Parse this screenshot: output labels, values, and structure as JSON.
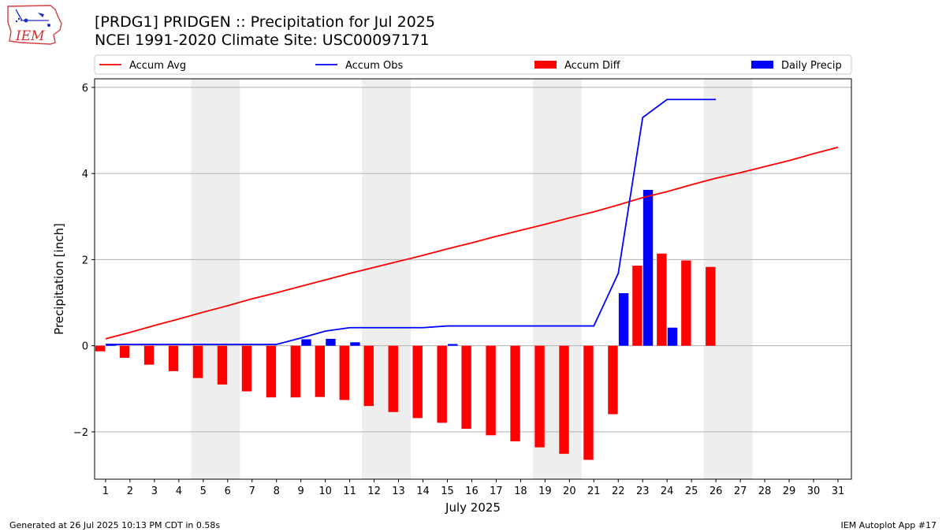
{
  "header": {
    "title_line1": "[PRDG1] PRIDGEN :: Precipitation for Jul 2025",
    "title_line2": "NCEI 1991-2020 Climate Site: USC00097171",
    "logo_text": "IEM"
  },
  "footer": {
    "generated": "Generated at 26 Jul 2025 10:13 PM CDT in 0.58s",
    "app": "IEM Autoplot App #17"
  },
  "colors": {
    "accum_avg": "#ff0000",
    "accum_obs": "#0000ff",
    "accum_diff": "#ff0000",
    "daily_precip": "#0000ff",
    "weekend_shade": "#eeeeee",
    "grid": "#b0b0b0"
  },
  "chart_data": {
    "type": "bar",
    "xlabel": "July 2025",
    "ylabel": "Precipitation [inch]",
    "ylim": [
      -3.1,
      6.2
    ],
    "yticks": [
      -2,
      0,
      2,
      4,
      6
    ],
    "ytick_labels": [
      "−2",
      "0",
      "2",
      "4",
      "6"
    ],
    "xlim": [
      0.55,
      31.55
    ],
    "days": [
      1,
      2,
      3,
      4,
      5,
      6,
      7,
      8,
      9,
      10,
      11,
      12,
      13,
      14,
      15,
      16,
      17,
      18,
      19,
      20,
      21,
      22,
      23,
      24,
      25,
      26,
      27,
      28,
      29,
      30,
      31
    ],
    "grid": "horizontal",
    "legend_placement": "top",
    "weekend_spans": [
      [
        4.5,
        6.5
      ],
      [
        11.5,
        13.5
      ],
      [
        18.5,
        20.5
      ],
      [
        25.5,
        27.5
      ]
    ],
    "series": [
      {
        "name": "Accum Avg",
        "kind": "line",
        "x": [
          1,
          2,
          3,
          4,
          5,
          6,
          7,
          8,
          9,
          10,
          11,
          12,
          13,
          14,
          15,
          16,
          17,
          18,
          19,
          20,
          21,
          22,
          23,
          24,
          25,
          26,
          27,
          28,
          29,
          30,
          31
        ],
        "values": [
          0.16,
          0.31,
          0.47,
          0.62,
          0.78,
          0.93,
          1.09,
          1.23,
          1.38,
          1.53,
          1.68,
          1.82,
          1.96,
          2.1,
          2.25,
          2.39,
          2.54,
          2.68,
          2.82,
          2.97,
          3.11,
          3.27,
          3.44,
          3.58,
          3.74,
          3.89,
          4.02,
          4.16,
          4.3,
          4.46,
          4.61
        ]
      },
      {
        "name": "Accum Obs",
        "kind": "line",
        "x": [
          1,
          2,
          3,
          4,
          5,
          6,
          7,
          8,
          9,
          10,
          11,
          12,
          13,
          14,
          15,
          16,
          17,
          18,
          19,
          20,
          21,
          22,
          23,
          24,
          25,
          26
        ],
        "values": [
          0.03,
          0.03,
          0.03,
          0.03,
          0.03,
          0.03,
          0.03,
          0.03,
          0.18,
          0.34,
          0.42,
          0.42,
          0.42,
          0.42,
          0.46,
          0.46,
          0.46,
          0.46,
          0.46,
          0.46,
          0.46,
          1.68,
          5.3,
          5.72,
          5.72,
          5.72
        ]
      },
      {
        "name": "Accum Diff",
        "kind": "bar",
        "x": [
          1,
          2,
          3,
          4,
          5,
          6,
          7,
          8,
          9,
          10,
          11,
          12,
          13,
          14,
          15,
          16,
          17,
          18,
          19,
          20,
          21,
          22,
          23,
          24,
          25,
          26
        ],
        "values": [
          -0.13,
          -0.28,
          -0.44,
          -0.59,
          -0.75,
          -0.9,
          -1.06,
          -1.2,
          -1.2,
          -1.19,
          -1.26,
          -1.4,
          -1.54,
          -1.68,
          -1.79,
          -1.93,
          -2.08,
          -2.22,
          -2.36,
          -2.51,
          -2.65,
          -1.59,
          1.86,
          2.14,
          1.98,
          1.83
        ]
      },
      {
        "name": "Daily Precip",
        "kind": "bar",
        "x": [
          1,
          2,
          3,
          4,
          5,
          6,
          7,
          8,
          9,
          10,
          11,
          12,
          13,
          14,
          15,
          16,
          17,
          18,
          19,
          20,
          21,
          22,
          23,
          24,
          25,
          26
        ],
        "values": [
          0.03,
          0,
          0,
          0,
          0,
          0,
          0,
          0,
          0.15,
          0.16,
          0.08,
          0,
          0,
          0,
          0.04,
          0,
          0,
          0,
          0,
          0,
          0,
          1.22,
          3.62,
          0.42,
          0,
          0
        ]
      }
    ]
  }
}
